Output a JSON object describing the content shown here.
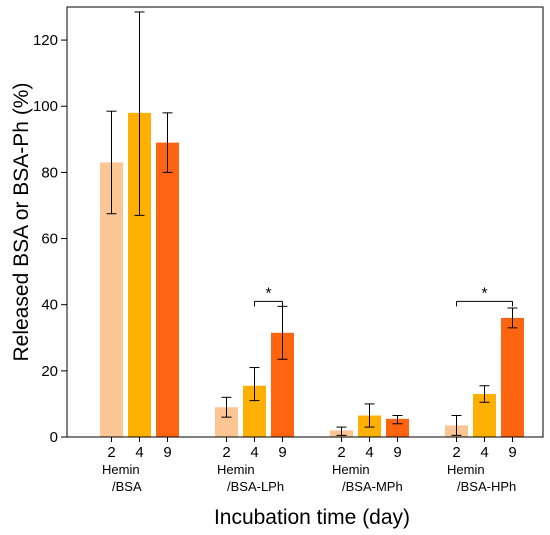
{
  "chart_data": {
    "type": "bar",
    "xlabel": "Incubation time (day)",
    "ylabel": "Released BSA or BSA-Ph (%)",
    "ylim": [
      0,
      130
    ],
    "yticks": [
      0,
      20,
      40,
      60,
      80,
      100,
      120
    ],
    "ytick_labels": [
      "0",
      "20",
      "40",
      "60",
      "80",
      "100",
      "120"
    ],
    "grid": false,
    "series_colors": {
      "2": "#FCC594",
      "4": "#FFB000",
      "9": "#FF6410"
    },
    "groups": [
      {
        "label_line1": "Hemin",
        "label_line2": "/BSA",
        "days": [
          "2",
          "4",
          "9"
        ],
        "values": [
          83,
          98,
          89
        ],
        "error_low": [
          67.5,
          67,
          80
        ],
        "error_high": [
          98.5,
          128.5,
          98
        ]
      },
      {
        "label_line1": "Hemin",
        "label_line2": "/BSA-LPh",
        "days": [
          "2",
          "4",
          "9"
        ],
        "values": [
          9,
          15.5,
          31.5
        ],
        "error_low": [
          6,
          11,
          23.5
        ],
        "error_high": [
          12,
          21,
          39.5
        ],
        "significance": {
          "from": 1,
          "to": 2,
          "label": "*",
          "height": 41
        }
      },
      {
        "label_line1": "Hemin",
        "label_line2": "/BSA-MPh",
        "days": [
          "2",
          "4",
          "9"
        ],
        "values": [
          2,
          6.5,
          5.5
        ],
        "error_low": [
          0.5,
          3,
          4
        ],
        "error_high": [
          3,
          10,
          6.5
        ]
      },
      {
        "label_line1": "Hemin",
        "label_line2": "/BSA-HPh",
        "days": [
          "2",
          "4",
          "9"
        ],
        "values": [
          3.5,
          13,
          36
        ],
        "error_low": [
          0.5,
          10.5,
          33
        ],
        "error_high": [
          6.5,
          15.5,
          39
        ],
        "significance": {
          "from": 0,
          "to": 2,
          "label": "*",
          "height": 41
        }
      }
    ]
  }
}
